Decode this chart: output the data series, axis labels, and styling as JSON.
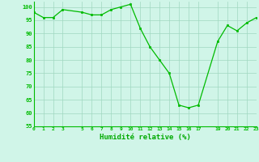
{
  "x": [
    0,
    1,
    2,
    3,
    5,
    6,
    7,
    8,
    9,
    10,
    11,
    12,
    13,
    14,
    15,
    16,
    17,
    19,
    20,
    21,
    22,
    23
  ],
  "y": [
    98,
    96,
    96,
    99,
    98,
    97,
    97,
    99,
    100,
    101,
    92,
    85,
    80,
    75,
    63,
    62,
    63,
    87,
    93,
    91,
    94,
    96
  ],
  "line_color": "#00bb00",
  "marker_color": "#00bb00",
  "bg_color": "#d0f5e8",
  "grid_color": "#a0d8c0",
  "xlabel": "Humidité relative (%)",
  "xlabel_color": "#00aa00",
  "xlim": [
    0,
    23
  ],
  "ylim": [
    55,
    102
  ],
  "yticks": [
    55,
    60,
    65,
    70,
    75,
    80,
    85,
    90,
    95,
    100
  ],
  "xticks": [
    0,
    1,
    2,
    3,
    5,
    6,
    7,
    8,
    9,
    10,
    11,
    12,
    13,
    14,
    15,
    16,
    17,
    19,
    20,
    21,
    22,
    23
  ],
  "xtick_labels": [
    "0",
    "1",
    "2",
    "3",
    "5",
    "6",
    "7",
    "8",
    "9",
    "10",
    "11",
    "12",
    "13",
    "14",
    "15",
    "16",
    "17",
    "19",
    "20",
    "21",
    "22",
    "23"
  ]
}
